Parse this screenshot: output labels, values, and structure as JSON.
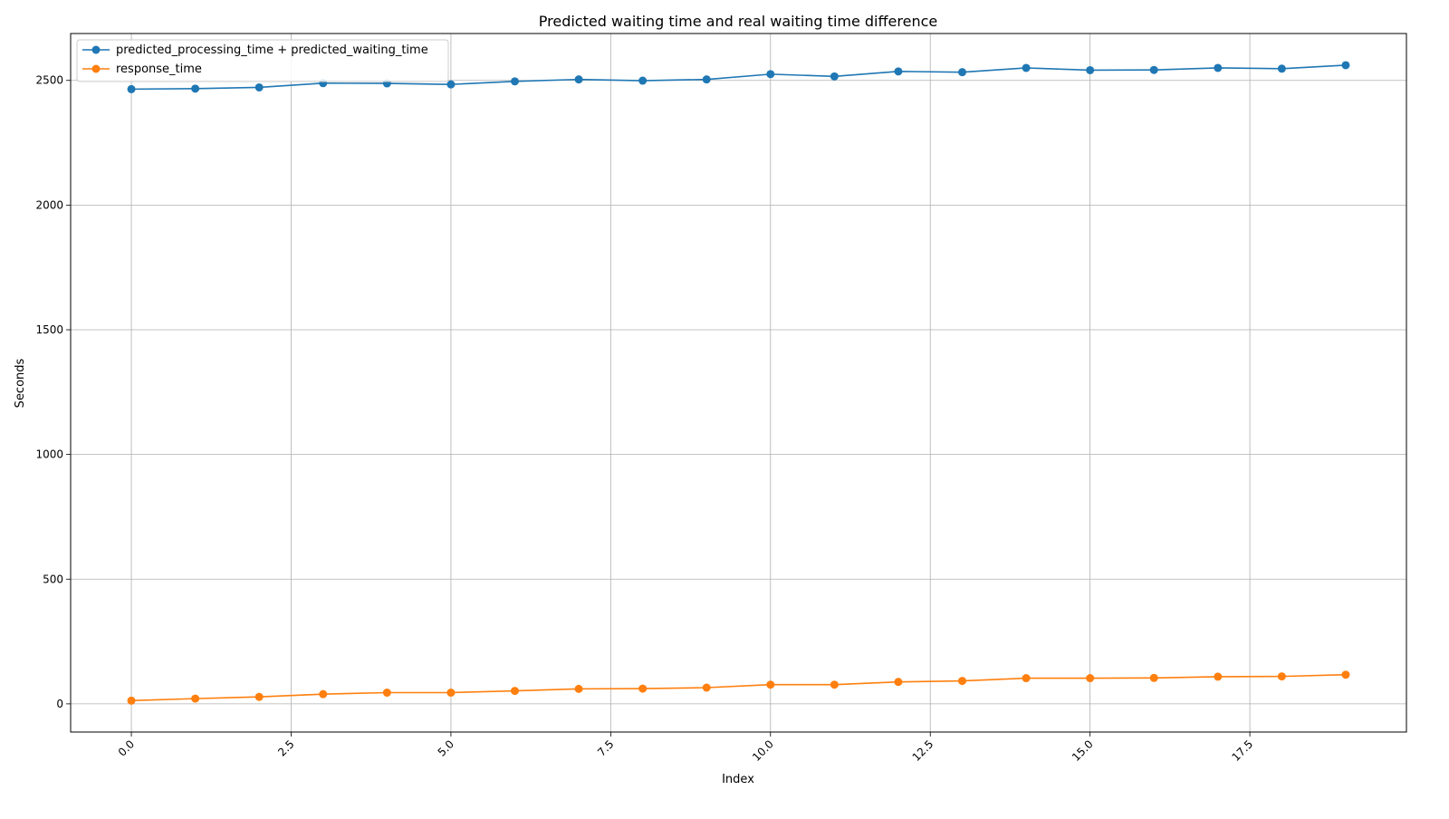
{
  "chart_data": {
    "type": "line",
    "title": "Predicted waiting time and real waiting time difference",
    "xlabel": "Index",
    "ylabel": "Seconds",
    "xlim": [
      -0.95,
      19.95
    ],
    "ylim": [
      -113,
      2688
    ],
    "xticks": [
      0.0,
      2.5,
      5.0,
      7.5,
      10.0,
      12.5,
      15.0,
      17.5
    ],
    "xtick_labels": [
      "0.0",
      "2.5",
      "5.0",
      "7.5",
      "10.0",
      "12.5",
      "15.0",
      "17.5"
    ],
    "yticks": [
      0,
      500,
      1000,
      1500,
      2000,
      2500
    ],
    "ytick_labels": [
      "0",
      "500",
      "1000",
      "1500",
      "2000",
      "2500"
    ],
    "grid": true,
    "legend_position": "upper-left",
    "x": [
      0,
      1,
      2,
      3,
      4,
      5,
      6,
      7,
      8,
      9,
      10,
      11,
      12,
      13,
      14,
      15,
      16,
      17,
      18,
      19
    ],
    "series": [
      {
        "name": "predicted_processing_time + predicted_waiting_time",
        "color": "#1f77b4",
        "values": [
          2465,
          2467,
          2472,
          2489,
          2488,
          2484,
          2496,
          2504,
          2499,
          2504,
          2525,
          2516,
          2536,
          2533,
          2550,
          2541,
          2542,
          2550,
          2547,
          2561
        ]
      },
      {
        "name": "response_time",
        "color": "#ff7f0e",
        "values": [
          13,
          21,
          28,
          39,
          45,
          45,
          52,
          60,
          61,
          65,
          77,
          77,
          88,
          92,
          103,
          103,
          104,
          109,
          110,
          117
        ]
      }
    ]
  }
}
